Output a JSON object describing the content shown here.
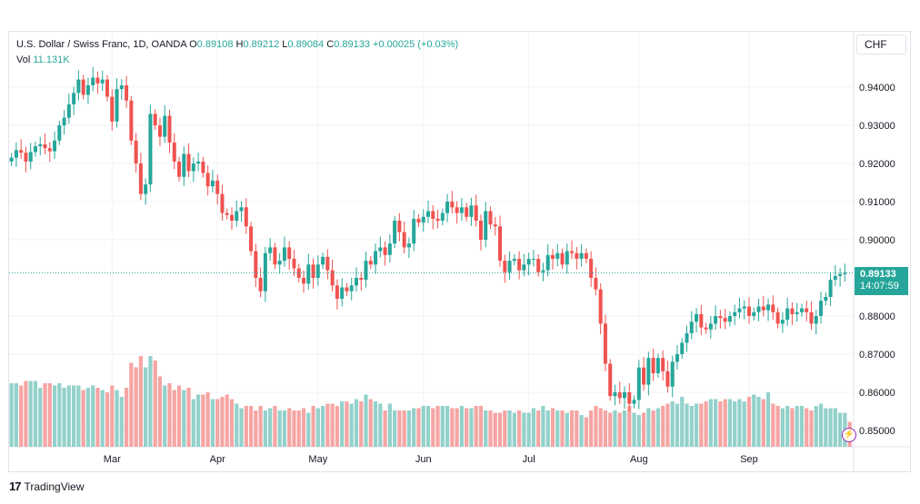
{
  "legend": {
    "symbol": "U.S. Dollar / Swiss Franc, 1D, OANDA",
    "open_label": "O",
    "open": "0.89108",
    "high_label": "H",
    "high": "0.89212",
    "low_label": "L",
    "low": "0.89084",
    "close_label": "C",
    "close": "0.89133",
    "change": "+0.00025 (+0.03%)",
    "vol_label": "Vol",
    "vol": "11.131K"
  },
  "currency_button": "CHF",
  "last_price": "0.89133",
  "countdown": "14:07:59",
  "brand": {
    "logo": "17",
    "name": "TradingView"
  },
  "colors": {
    "up": "#26a69a",
    "down": "#ef5350",
    "up_vol": "#93d1cb",
    "down_vol": "#f5a5a4",
    "grid": "#f0f3fa",
    "text": "#131722"
  },
  "chart_data": {
    "type": "candlestick",
    "instrument": "U.S. Dollar / Swiss Franc",
    "interval": "1D",
    "x_tick_labels": [
      "Mar",
      "Apr",
      "May",
      "Jun",
      "Jul",
      "Aug",
      "Sep"
    ],
    "y_tick_labels": [
      "0.94000",
      "0.93000",
      "0.92000",
      "0.91000",
      "0.90000",
      "0.88000",
      "0.87000",
      "0.86000",
      "0.85000"
    ],
    "y_tick_values": [
      0.94,
      0.93,
      0.92,
      0.91,
      0.9,
      0.88,
      0.87,
      0.86,
      0.85
    ],
    "ylim": [
      0.8465,
      0.9455
    ],
    "volume_max": 60,
    "close_series": [
      0.9215,
      0.9235,
      0.9228,
      0.9205,
      0.923,
      0.9245,
      0.925,
      0.924,
      0.9232,
      0.926,
      0.93,
      0.932,
      0.9355,
      0.9385,
      0.942,
      0.938,
      0.9405,
      0.9425,
      0.941,
      0.942,
      0.9375,
      0.931,
      0.9395,
      0.9405,
      0.9365,
      0.926,
      0.92,
      0.912,
      0.9145,
      0.933,
      0.93,
      0.927,
      0.9325,
      0.9255,
      0.9205,
      0.9165,
      0.9225,
      0.918,
      0.92,
      0.9205,
      0.9175,
      0.914,
      0.9155,
      0.912,
      0.907,
      0.9065,
      0.905,
      0.9075,
      0.9085,
      0.9035,
      0.897,
      0.89,
      0.8865,
      0.8965,
      0.898,
      0.8935,
      0.8945,
      0.898,
      0.895,
      0.8925,
      0.89,
      0.8885,
      0.8935,
      0.89,
      0.8935,
      0.8955,
      0.892,
      0.888,
      0.8845,
      0.8875,
      0.8865,
      0.888,
      0.89,
      0.8895,
      0.8945,
      0.8935,
      0.897,
      0.898,
      0.896,
      0.899,
      0.905,
      0.902,
      0.898,
      0.899,
      0.9055,
      0.9045,
      0.906,
      0.9075,
      0.9055,
      0.905,
      0.907,
      0.91,
      0.9085,
      0.907,
      0.9085,
      0.906,
      0.909,
      0.905,
      0.9,
      0.9075,
      0.904,
      0.9035,
      0.8945,
      0.8915,
      0.8945,
      0.895,
      0.892,
      0.8935,
      0.895,
      0.895,
      0.8915,
      0.892,
      0.896,
      0.895,
      0.8965,
      0.8935,
      0.897,
      0.8965,
      0.895,
      0.8965,
      0.895,
      0.89,
      0.887,
      0.878,
      0.8675,
      0.859,
      0.86,
      0.8585,
      0.86,
      0.857,
      0.858,
      0.8665,
      0.862,
      0.869,
      0.865,
      0.869,
      0.8655,
      0.8615,
      0.868,
      0.87,
      0.873,
      0.8755,
      0.8785,
      0.8805,
      0.877,
      0.8765,
      0.878,
      0.88,
      0.8795,
      0.8785,
      0.88,
      0.881,
      0.882,
      0.8825,
      0.88,
      0.881,
      0.8825,
      0.8815,
      0.883,
      0.881,
      0.878,
      0.879,
      0.882,
      0.8805,
      0.881,
      0.882,
      0.881,
      0.878,
      0.88,
      0.884,
      0.885,
      0.8895,
      0.8905,
      0.891,
      0.89133
    ],
    "volume_series": [
      28,
      28,
      27,
      29,
      29,
      29,
      26,
      28,
      28,
      27,
      28,
      26,
      27,
      27,
      27,
      25,
      26,
      27,
      26,
      25,
      24,
      27,
      25,
      22,
      26,
      37,
      35,
      40,
      35,
      40,
      38,
      31,
      27,
      28,
      25,
      27,
      25,
      26,
      21,
      23,
      23,
      24,
      21,
      21,
      22,
      23,
      21,
      19,
      17,
      18,
      18,
      16,
      18,
      16,
      17,
      18,
      16,
      16,
      17,
      16,
      16,
      17,
      15,
      18,
      17,
      18,
      19,
      19,
      18,
      20,
      20,
      19,
      21,
      20,
      23,
      21,
      20,
      19,
      16,
      19,
      16,
      16,
      16,
      16,
      17,
      17,
      18,
      18,
      17,
      18,
      18,
      18,
      17,
      17,
      18,
      17,
      17,
      18,
      18,
      16,
      16,
      15,
      15,
      16,
      16,
      15,
      16,
      15,
      15,
      17,
      16,
      18,
      16,
      17,
      16,
      16,
      15,
      16,
      16,
      14,
      13,
      16,
      18,
      17,
      16,
      15,
      16,
      15,
      16,
      18,
      15,
      14,
      15,
      17,
      16,
      17,
      18,
      19,
      20,
      19,
      22,
      19,
      18,
      19,
      19,
      20,
      21,
      21,
      20,
      21,
      21,
      20,
      21,
      20,
      22,
      23,
      22,
      21,
      24,
      19,
      18,
      17,
      18,
      17,
      18,
      18,
      17,
      16,
      18,
      19,
      17,
      17,
      17,
      15,
      15,
      11
    ]
  }
}
